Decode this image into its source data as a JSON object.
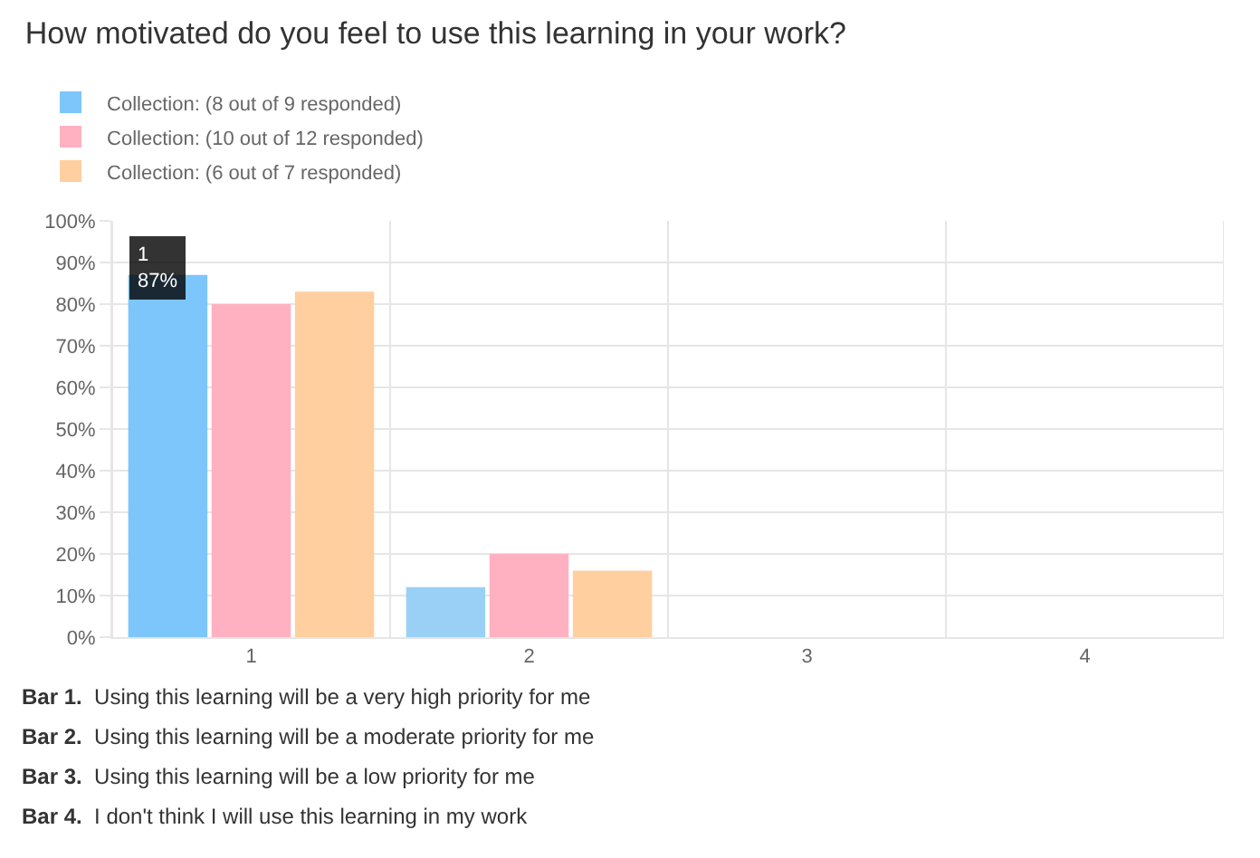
{
  "chart_data": {
    "type": "bar",
    "title": "How motivated do you feel to use this learning in your work?",
    "categories": [
      "1",
      "2",
      "3",
      "4"
    ],
    "series": [
      {
        "name": "Collection: (8 out of 9 responded)",
        "color": "#9ad0f5",
        "colors": [
          "#7cc6fb",
          "#9ad0f5",
          "#9ad0f5",
          "#9ad0f5"
        ],
        "values": [
          87,
          12,
          0,
          0
        ]
      },
      {
        "name": "Collection: (10 out of 12 responded)",
        "color": "#ffb1c1",
        "values": [
          80,
          20,
          0,
          0
        ]
      },
      {
        "name": "Collection: (6 out of 7 responded)",
        "color": "#ffcf9f",
        "values": [
          83,
          16,
          0,
          0
        ]
      }
    ],
    "ylim": [
      0,
      100
    ],
    "yticks": [
      {
        "value": 0,
        "label": "0%"
      },
      {
        "value": 10,
        "label": "10%"
      },
      {
        "value": 20,
        "label": "20%"
      },
      {
        "value": 30,
        "label": "30%"
      },
      {
        "value": 40,
        "label": "40%"
      },
      {
        "value": 50,
        "label": "50%"
      },
      {
        "value": 60,
        "label": "60%"
      },
      {
        "value": 70,
        "label": "70%"
      },
      {
        "value": 80,
        "label": "80%"
      },
      {
        "value": 90,
        "label": "90%"
      },
      {
        "value": 100,
        "label": "100%"
      }
    ],
    "grid": true,
    "legend": "top left",
    "annotations": [
      "1\n87%",
      "Bar 1.  Using this learning will be a very high priority for me",
      "Bar 2.  Using this learning will be a moderate priority for me",
      "Bar 3.  Using this learning will be a low priority for me",
      "Bar 4.  I don't think I will use this learning in my work"
    ]
  }
}
